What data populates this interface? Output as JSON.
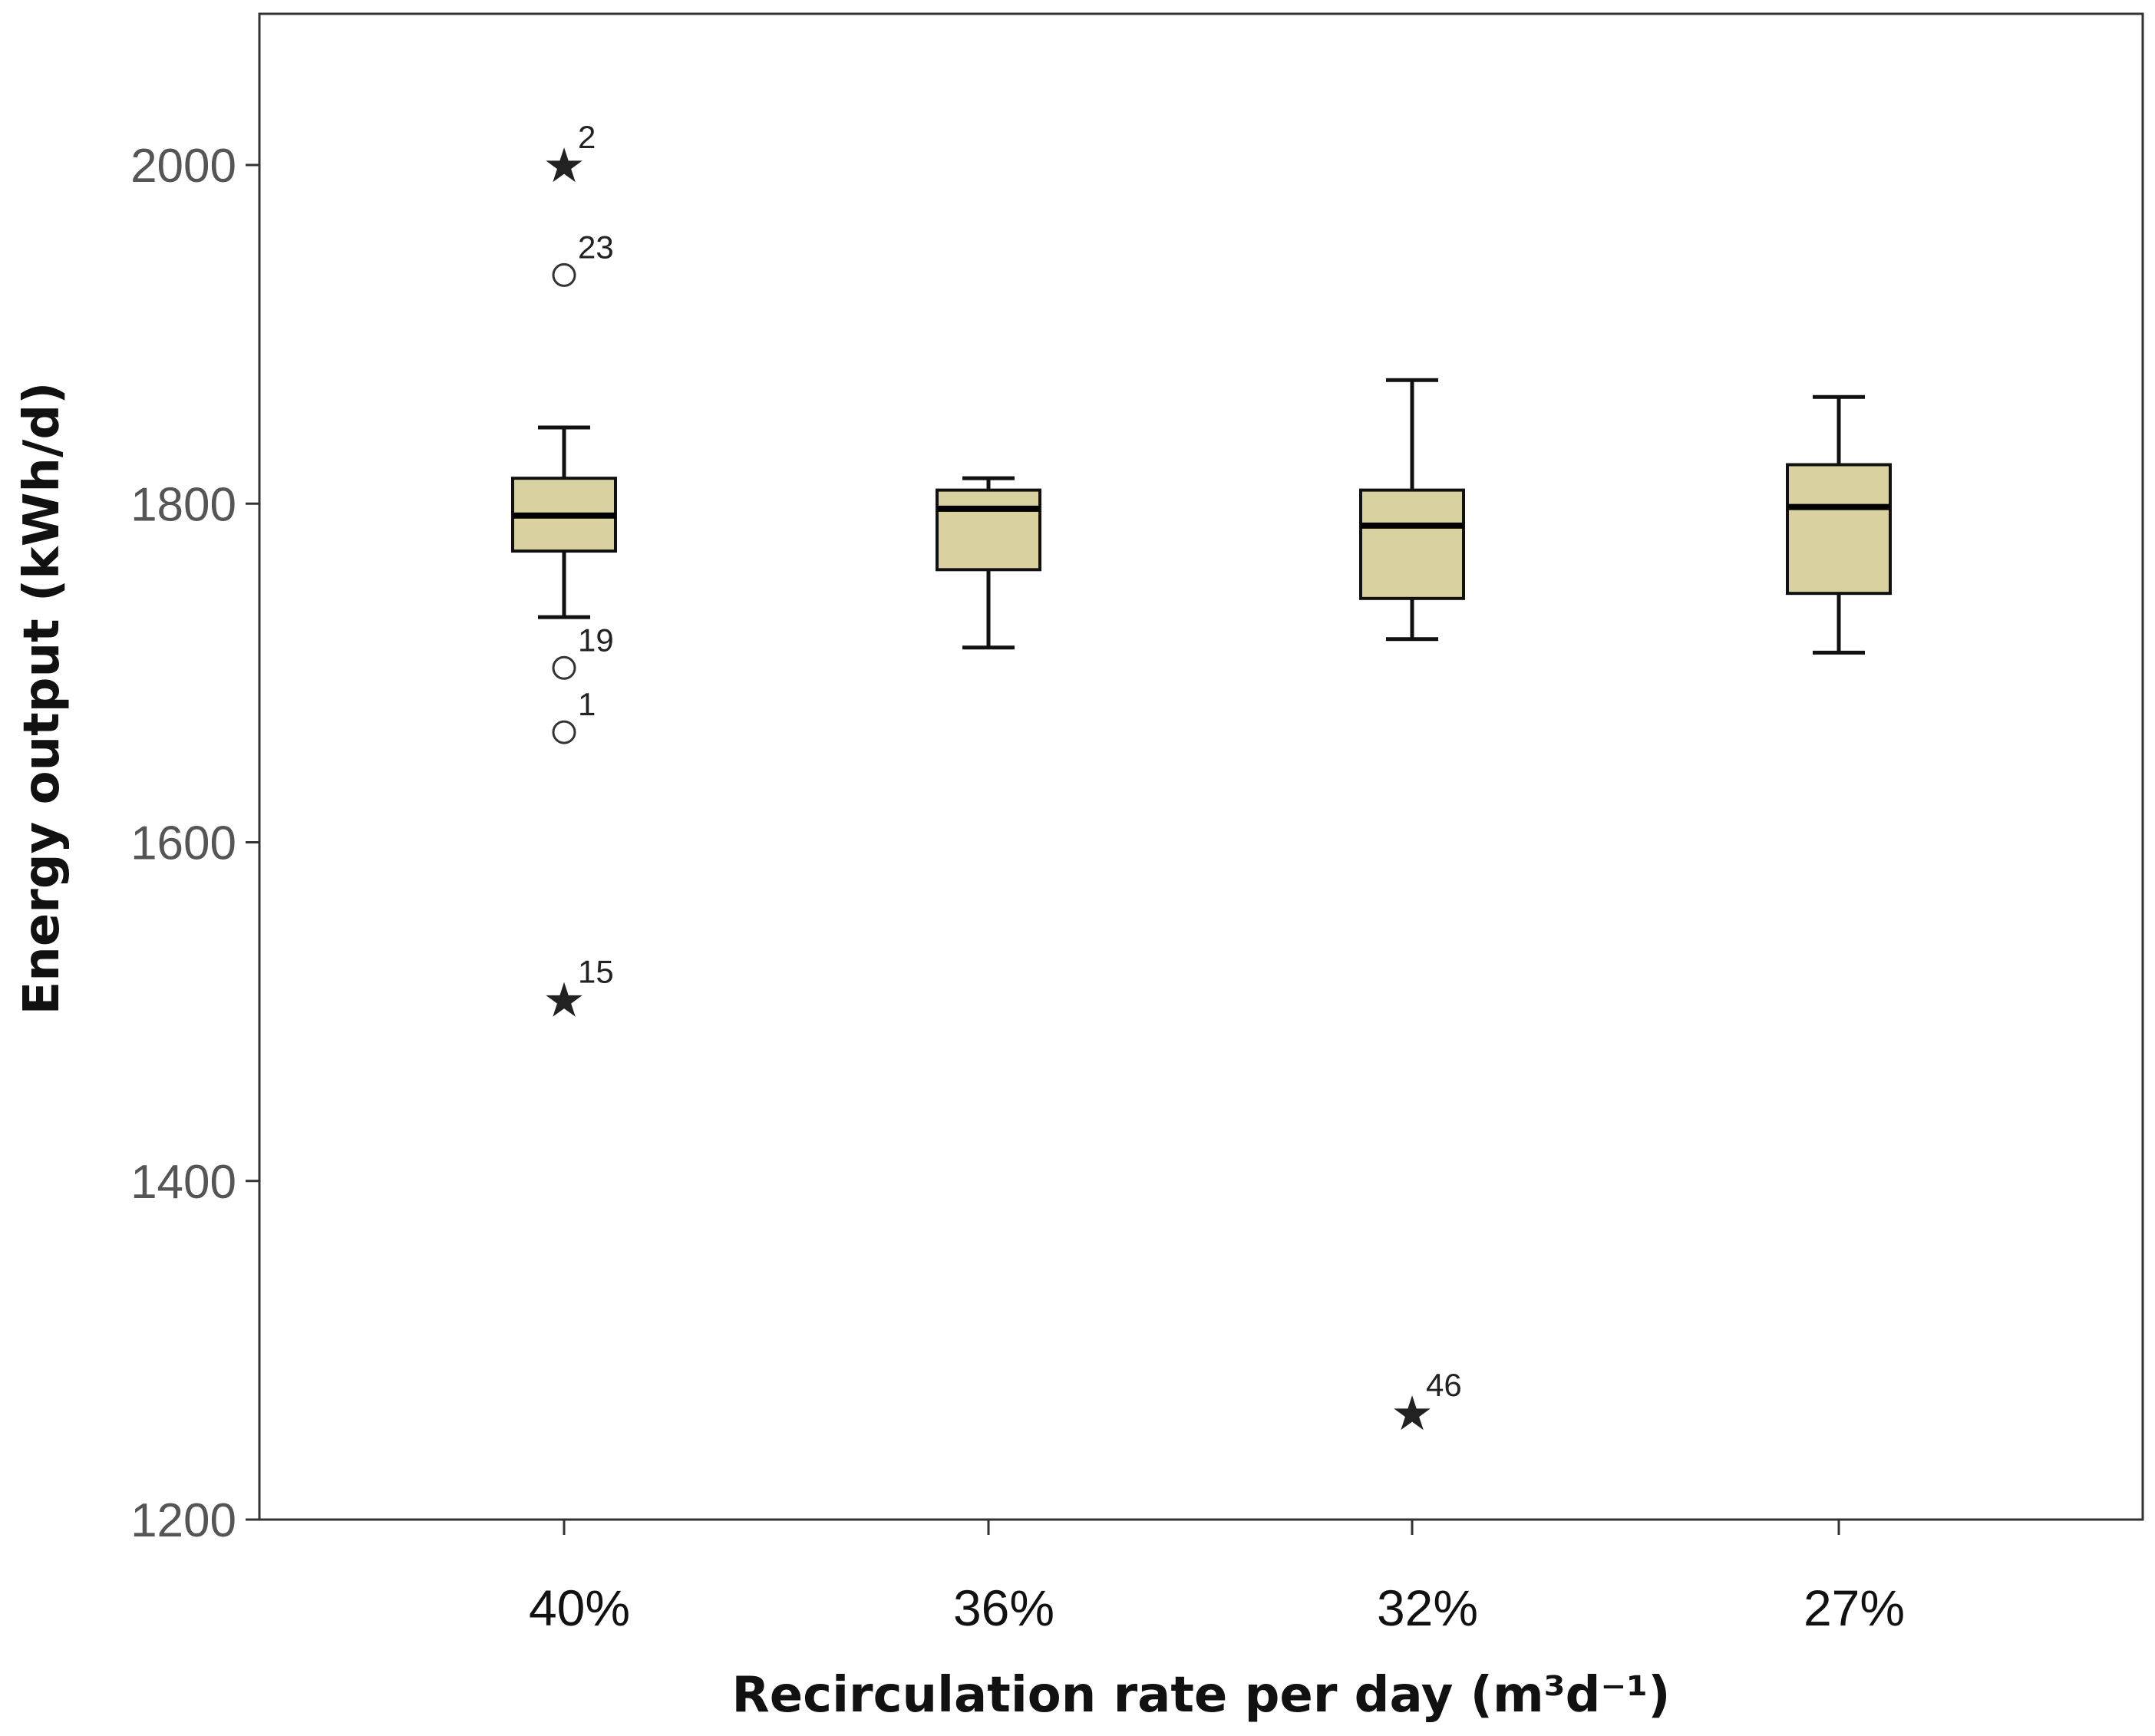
{
  "chart_data": {
    "type": "boxplot",
    "title": "",
    "xlabel": "Recirculation rate per day (m³d⁻¹)",
    "ylabel": "Energy output (kWh/d)",
    "ylim": [
      1200,
      2080
    ],
    "yticks": [
      1200,
      1400,
      1600,
      1800,
      2000
    ],
    "grid": false,
    "colors": {
      "box_fill": "#d9d2a0",
      "stroke": "#111111"
    },
    "categories": [
      "40%",
      "36%",
      "32%",
      "27%"
    ],
    "boxes": [
      {
        "category": "40%",
        "whisker_low": 1733,
        "q1": 1772,
        "median": 1793,
        "q3": 1815,
        "whisker_high": 1845,
        "outliers": [
          {
            "id": "2",
            "value": 2000,
            "kind": "extreme"
          },
          {
            "id": "23",
            "value": 1935,
            "kind": "outlier"
          },
          {
            "id": "19",
            "value": 1703,
            "kind": "outlier"
          },
          {
            "id": "1",
            "value": 1665,
            "kind": "outlier"
          },
          {
            "id": "15",
            "value": 1507,
            "kind": "extreme"
          }
        ]
      },
      {
        "category": "36%",
        "whisker_low": 1715,
        "q1": 1761,
        "median": 1797,
        "q3": 1808,
        "whisker_high": 1815,
        "outliers": []
      },
      {
        "category": "32%",
        "whisker_low": 1720,
        "q1": 1744,
        "median": 1787,
        "q3": 1808,
        "whisker_high": 1873,
        "outliers": [
          {
            "id": "46",
            "value": 1263,
            "kind": "extreme"
          }
        ]
      },
      {
        "category": "27%",
        "whisker_low": 1712,
        "q1": 1747,
        "median": 1798,
        "q3": 1823,
        "whisker_high": 1863,
        "outliers": []
      }
    ]
  }
}
